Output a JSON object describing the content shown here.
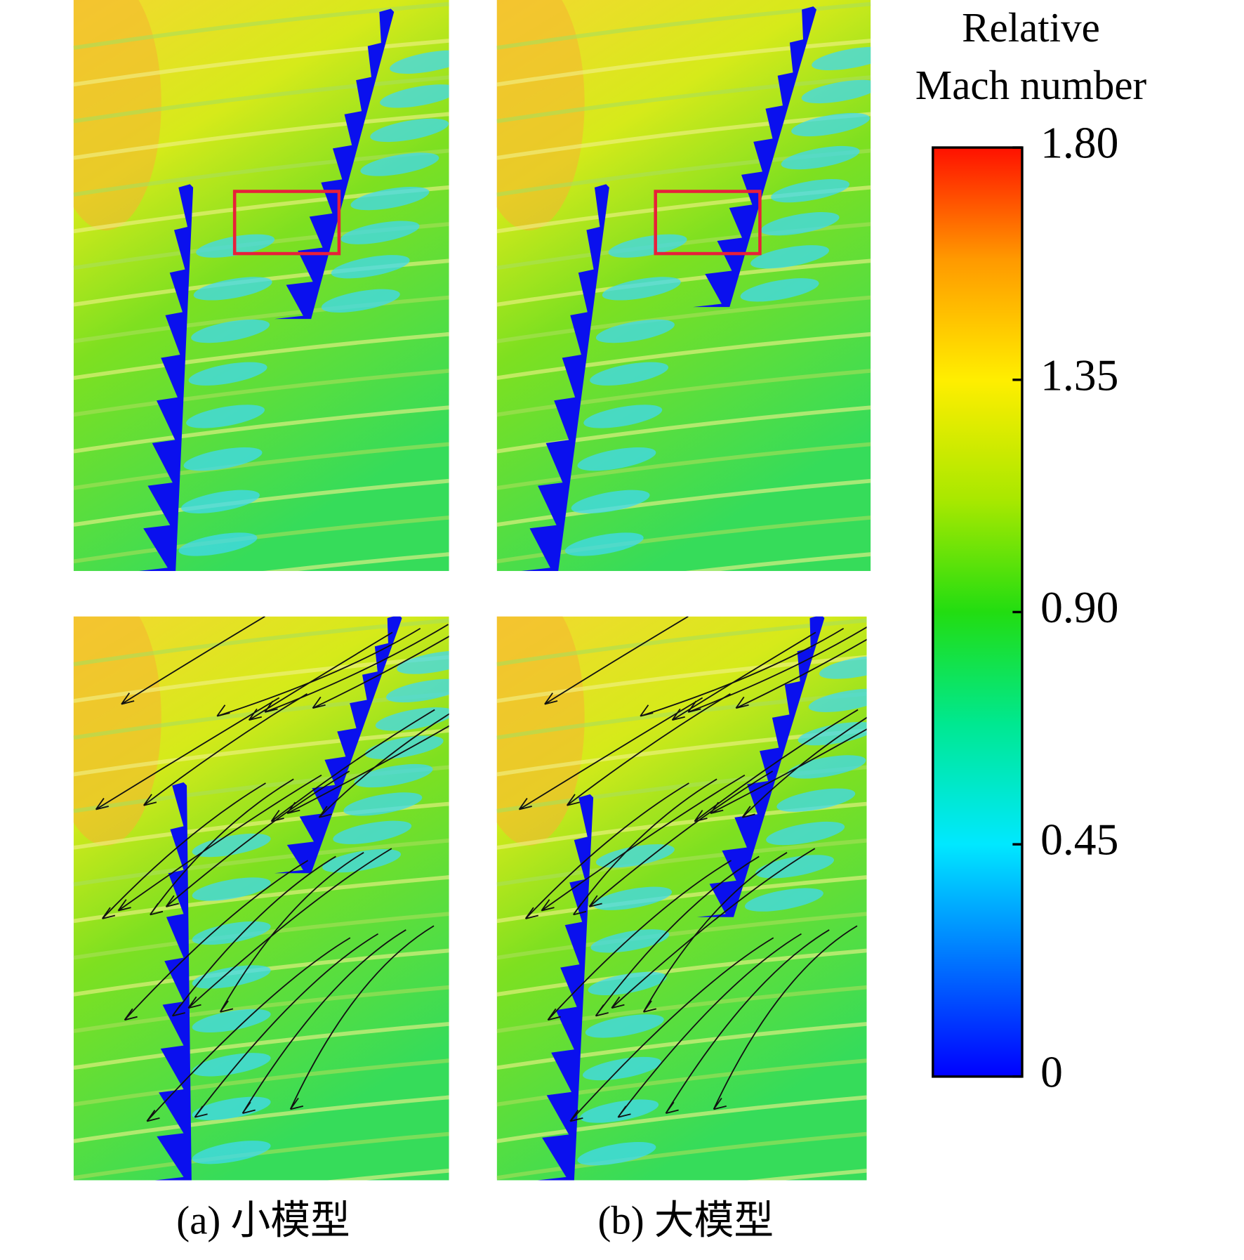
{
  "colorbar": {
    "title": [
      "Relative",
      "Mach number"
    ],
    "ylim": [
      0,
      1.8
    ],
    "yticks": [
      0,
      0.45,
      {
        "value": 0.9,
        "label": "0.90"
      },
      1.35,
      {
        "value": 1.8,
        "label": "1.80"
      }
    ]
  },
  "captions": [
    "(a) 小模型",
    "(b) 大模型"
  ]
}
